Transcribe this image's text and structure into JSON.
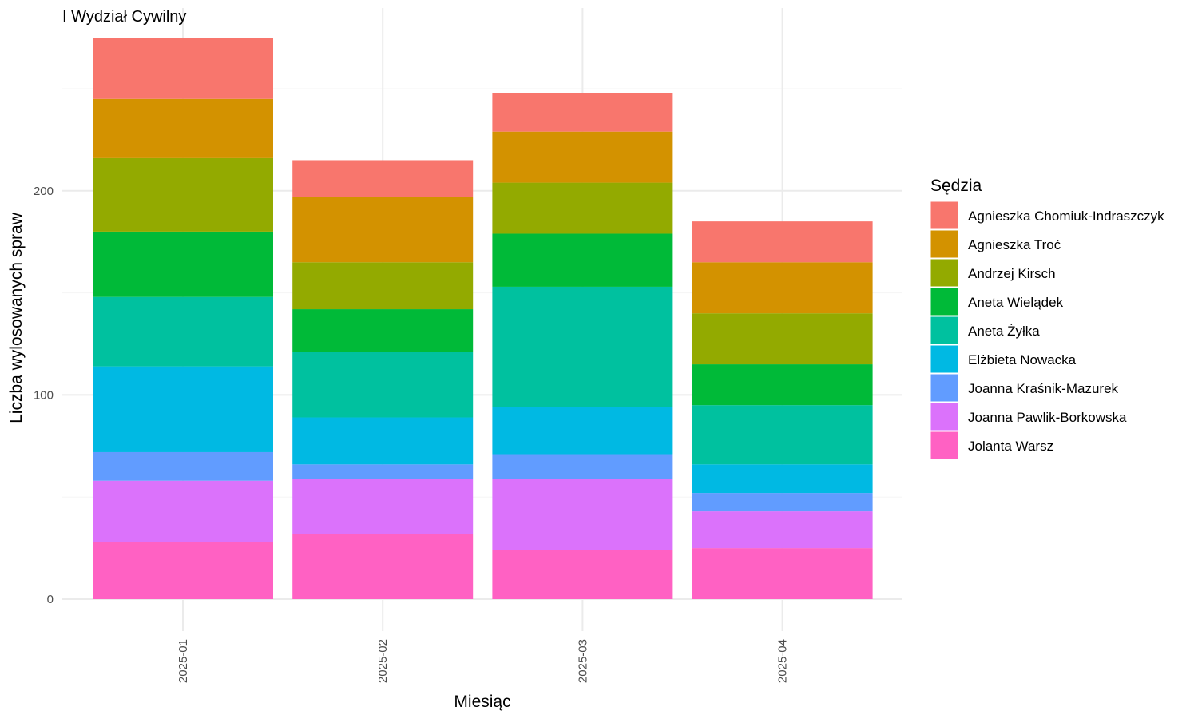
{
  "chart_data": {
    "type": "bar",
    "stacked": true,
    "title": "I Wydział Cywilny",
    "xlabel": "Miesiąc",
    "ylabel": "Liczba wylosowanych spraw",
    "ylim": [
      0,
      280
    ],
    "yticks": [
      0,
      100,
      200
    ],
    "grid": true,
    "legend_title": "Sędzia",
    "legend_position": "right",
    "categories": [
      "2025-01",
      "2025-02",
      "2025-03",
      "2025-04"
    ],
    "series": [
      {
        "name": "Jolanta Warsz",
        "color": "#FF61C3",
        "values": [
          28,
          32,
          24,
          25
        ]
      },
      {
        "name": "Joanna Pawlik-Borkowska",
        "color": "#DB72FB",
        "values": [
          30,
          27,
          35,
          18
        ]
      },
      {
        "name": "Joanna Kraśnik-Mazurek",
        "color": "#619CFF",
        "values": [
          14,
          7,
          12,
          9
        ]
      },
      {
        "name": "Elżbieta Nowacka",
        "color": "#00B9E3",
        "values": [
          42,
          23,
          23,
          14
        ]
      },
      {
        "name": "Aneta Żyłka",
        "color": "#00C19F",
        "values": [
          34,
          32,
          59,
          29
        ]
      },
      {
        "name": "Aneta Wielądek",
        "color": "#00BA38",
        "values": [
          32,
          21,
          26,
          20
        ]
      },
      {
        "name": "Andrzej Kirsch",
        "color": "#93AA00",
        "values": [
          36,
          23,
          25,
          25
        ]
      },
      {
        "name": "Agnieszka Troć",
        "color": "#D39200",
        "values": [
          29,
          32,
          25,
          25
        ]
      },
      {
        "name": "Agnieszka Chomiuk-Indraszczyk",
        "color": "#F8766D",
        "values": [
          30,
          18,
          19,
          20
        ]
      }
    ],
    "legend_order": [
      "Agnieszka Chomiuk-Indraszczyk",
      "Agnieszka Troć",
      "Andrzej Kirsch",
      "Aneta Wielądek",
      "Aneta Żyłka",
      "Elżbieta Nowacka",
      "Joanna Kraśnik-Mazurek",
      "Joanna Pawlik-Borkowska",
      "Jolanta Warsz"
    ]
  }
}
